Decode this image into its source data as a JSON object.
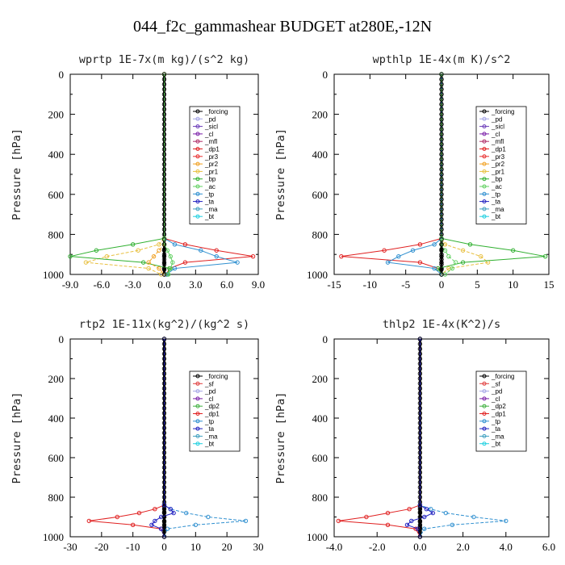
{
  "title": "044_f2c_gammashear  BUDGET at280E,-12N",
  "panels": [
    {
      "title": "wprtp   1E-7x(m kg)/(s^2 kg)",
      "ylabel": "Pressure [hPa]",
      "xlim": [
        -9,
        9
      ],
      "xticks": [
        "-9.0",
        "-6.0",
        "-3.0",
        "0.0",
        "3.0",
        "6.0",
        "9.0"
      ],
      "xtickvals": [
        -9,
        -6,
        -3,
        0,
        3,
        6,
        9
      ],
      "legend": [
        "_forcing",
        "_pd",
        "_sicl",
        "_cl",
        "_mfl",
        "_dp1",
        "_pr3",
        "_pr2",
        "_pr1",
        "_bp",
        "_ac",
        "_tp",
        "_ta",
        "_ma",
        "_bt"
      ]
    },
    {
      "title": "wpthlp   1E-4x(m K)/s^2",
      "ylabel": "Pressure [hPa]",
      "xlim": [
        -15,
        15
      ],
      "xticks": [
        "-15",
        "-10",
        "-5",
        "0",
        "5",
        "10",
        "15"
      ],
      "xtickvals": [
        -15,
        -10,
        -5,
        0,
        5,
        10,
        15
      ],
      "legend": [
        "_forcing",
        "_pd",
        "_sicl",
        "_cl",
        "_mfl",
        "_dp1",
        "_pr3",
        "_pr2",
        "_pr1",
        "_bp",
        "_ac",
        "_tp",
        "_ta",
        "_ma",
        "_bt"
      ]
    },
    {
      "title": "rtp2   1E-11x(kg^2)/(kg^2 s)",
      "ylabel": "Pressure [hPa]",
      "xlim": [
        -30,
        30
      ],
      "xticks": [
        "-30",
        "-20",
        "-10",
        "0",
        "10",
        "20",
        "30"
      ],
      "xtickvals": [
        -30,
        -20,
        -10,
        0,
        10,
        20,
        30
      ],
      "legend": [
        "_forcing",
        "_sf",
        "_pd",
        "_cl",
        "_dp2",
        "_dp1",
        "_tp",
        "_ta",
        "_ma",
        "_bt"
      ]
    },
    {
      "title": "thlp2   1E-4x(K^2)/s",
      "ylabel": "Pressure [hPa]",
      "xlim": [
        -4,
        6
      ],
      "xticks": [
        "-4.0",
        "-2.0",
        "0.0",
        "2.0",
        "4.0",
        "6.0"
      ],
      "xtickvals": [
        -4,
        -2,
        0,
        2,
        4,
        6
      ],
      "legend": [
        "_forcing",
        "_sf",
        "_pd",
        "_cl",
        "_dp2",
        "_dp1",
        "_tp",
        "_ta",
        "_ma",
        "_bt"
      ]
    }
  ],
  "yticks": [
    "0",
    "200",
    "400",
    "600",
    "800",
    "1000"
  ],
  "ytickvals": [
    0,
    200,
    400,
    600,
    800,
    1000
  ],
  "colors": {
    "_forcing": "#000000",
    "_pd": "#a5a5e6",
    "_sicl": "#6a3ab8",
    "_cl": "#7a1fa8",
    "_mfl": "#b0306a",
    "_dp1": "#e02020",
    "_pr3": "#e83030",
    "_pr2": "#f0a020",
    "_pr1": "#e8c040",
    "_bp": "#30b030",
    "_ac": "#60d060",
    "_tp": "#3090d0",
    "_ta": "#2020c0",
    "_ma": "#40a0c0",
    "_bt": "#20d0e0",
    "_sf": "#e04040",
    "_dp2": "#40b040"
  },
  "chart_data": [
    {
      "type": "line",
      "title": "wprtp   1E-7x(m kg)/(s^2 kg)",
      "ylabel": "Pressure [hPa]",
      "xlim": [
        -9,
        9
      ],
      "ylim": [
        1000,
        0
      ],
      "y": [
        0,
        820,
        850,
        880,
        910,
        940,
        970,
        1000
      ],
      "series": [
        {
          "name": "_forcing",
          "values": [
            0,
            0,
            0,
            0,
            0,
            0,
            0,
            0
          ]
        },
        {
          "name": "_dp1",
          "values": [
            0,
            0,
            2.0,
            5.0,
            8.5,
            2.0,
            0.5,
            0.2
          ]
        },
        {
          "name": "_pr1",
          "values": [
            0,
            0,
            -0.5,
            -2.5,
            -5.5,
            -7.5,
            -1.5,
            -0.3
          ]
        },
        {
          "name": "_bp",
          "values": [
            0,
            0,
            -3.0,
            -6.5,
            -9.0,
            -2.0,
            0.5,
            0.3
          ]
        },
        {
          "name": "_tp",
          "values": [
            0,
            0,
            1.0,
            3.5,
            5.0,
            7.0,
            1.0,
            0.2
          ]
        },
        {
          "name": "_pr2",
          "values": [
            0,
            0,
            0,
            -0.5,
            -1.0,
            -1.5,
            -0.5,
            0
          ]
        },
        {
          "name": "_ac",
          "values": [
            0,
            0,
            0,
            0.3,
            0.6,
            0.8,
            0.6,
            0.4
          ]
        }
      ]
    },
    {
      "type": "line",
      "title": "wpthlp   1E-4x(m K)/s^2",
      "ylabel": "Pressure [hPa]",
      "xlim": [
        -15,
        15
      ],
      "ylim": [
        1000,
        0
      ],
      "y": [
        0,
        820,
        850,
        880,
        910,
        940,
        970,
        1000
      ],
      "series": [
        {
          "name": "_forcing",
          "values": [
            0,
            0,
            0,
            0,
            0,
            0,
            0,
            0
          ]
        },
        {
          "name": "_dp1",
          "values": [
            0,
            0,
            -3.0,
            -8.0,
            -14.0,
            -3.0,
            -0.5,
            0
          ]
        },
        {
          "name": "_pr1",
          "values": [
            0,
            0,
            0.5,
            3.0,
            5.5,
            6.5,
            1.0,
            0
          ]
        },
        {
          "name": "_bp",
          "values": [
            0,
            0,
            4.0,
            10.0,
            14.5,
            3.0,
            -0.5,
            0
          ]
        },
        {
          "name": "_tp",
          "values": [
            0,
            0,
            -1.0,
            -4.0,
            -6.0,
            -7.5,
            -1.0,
            0
          ]
        },
        {
          "name": "_ac",
          "values": [
            0,
            0,
            0,
            0.5,
            1.0,
            2.0,
            1.5,
            0.5
          ]
        }
      ]
    },
    {
      "type": "line",
      "title": "rtp2   1E-11x(kg^2)/(kg^2 s)",
      "ylabel": "Pressure [hPa]",
      "xlim": [
        -30,
        30
      ],
      "ylim": [
        1000,
        0
      ],
      "y": [
        0,
        840,
        860,
        880,
        900,
        920,
        940,
        960,
        1000
      ],
      "series": [
        {
          "name": "_forcing",
          "values": [
            0,
            0,
            0,
            0,
            0,
            0,
            0,
            0,
            0
          ]
        },
        {
          "name": "_dp1",
          "values": [
            0,
            0,
            -3.0,
            -8.0,
            -15.0,
            -24.0,
            -10.0,
            -1.0,
            0
          ]
        },
        {
          "name": "_tp",
          "values": [
            0,
            0,
            2.0,
            7.0,
            14.0,
            26.0,
            10.0,
            1.0,
            0
          ]
        },
        {
          "name": "_ta",
          "values": [
            0,
            0,
            2.0,
            3.0,
            -1.0,
            -3.0,
            -4.0,
            -1.0,
            0
          ]
        }
      ]
    },
    {
      "type": "line",
      "title": "thlp2   1E-4x(K^2)/s",
      "ylabel": "Pressure [hPa]",
      "xlim": [
        -4,
        6
      ],
      "ylim": [
        1000,
        0
      ],
      "y": [
        0,
        840,
        860,
        880,
        900,
        920,
        940,
        960,
        1000
      ],
      "series": [
        {
          "name": "_forcing",
          "values": [
            0,
            0,
            0,
            0,
            0,
            0,
            0,
            0,
            0
          ]
        },
        {
          "name": "_dp1",
          "values": [
            0,
            0,
            -0.5,
            -1.5,
            -2.5,
            -3.8,
            -1.5,
            -0.2,
            0
          ]
        },
        {
          "name": "_tp",
          "values": [
            0,
            0,
            0.5,
            1.2,
            2.5,
            4.0,
            1.5,
            0.2,
            0
          ]
        },
        {
          "name": "_ta",
          "values": [
            0,
            0,
            0.3,
            0.6,
            0.2,
            -0.4,
            -0.6,
            -0.1,
            0
          ]
        }
      ]
    }
  ]
}
